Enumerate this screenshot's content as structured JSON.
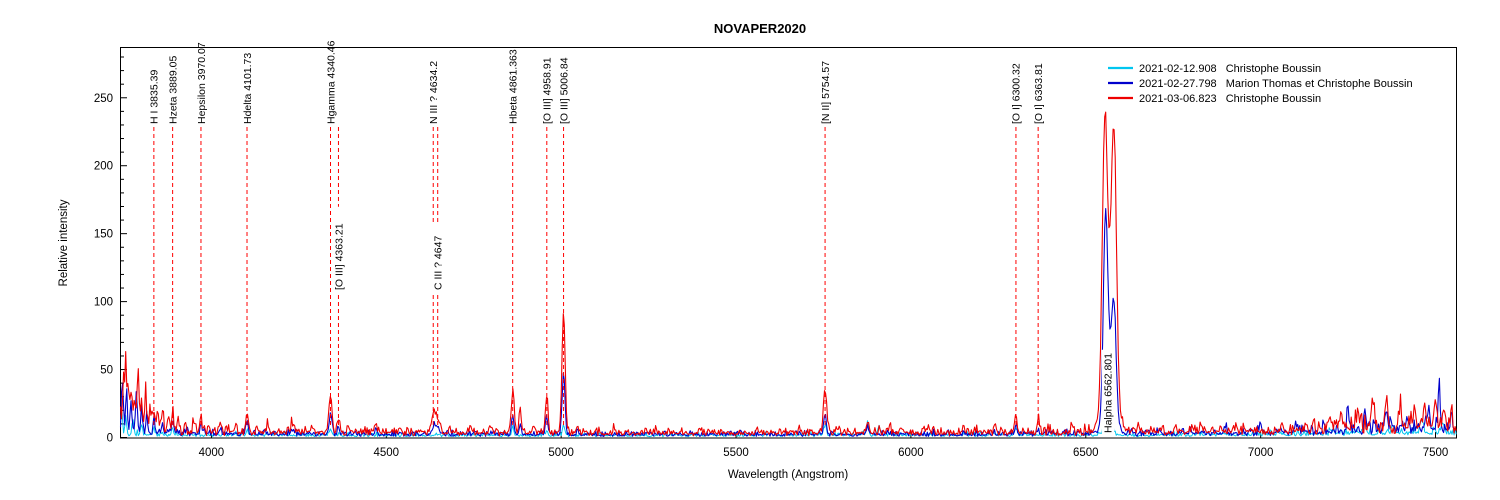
{
  "chart_data": {
    "type": "line",
    "title": "NOVAPER2020",
    "xlabel": "Wavelength (Angstrom)",
    "ylabel": "Relative intensity",
    "xlim": [
      3740,
      7560
    ],
    "ylim": [
      0,
      287
    ],
    "x_major_ticks": [
      4000,
      4500,
      5000,
      5500,
      6000,
      6500,
      7000,
      7500
    ],
    "y_major_ticks": [
      0,
      50,
      100,
      150,
      200,
      250
    ],
    "y_minor_step": 10,
    "grid": false,
    "legend_position": "top-right",
    "annotation_color": "#ff0000",
    "annotations": [
      {
        "label": "H I 3835.39",
        "wl": 3835.39,
        "tier": "top"
      },
      {
        "label": "Hzeta 3889.05",
        "wl": 3889.05,
        "tier": "top"
      },
      {
        "label": "Hepsilon 3970.07",
        "wl": 3970.07,
        "tier": "top"
      },
      {
        "label": "Hdelta 4101.73",
        "wl": 4101.73,
        "tier": "top"
      },
      {
        "label": "Hgamma 4340.46",
        "wl": 4340.46,
        "tier": "top"
      },
      {
        "label": "[O III] 4363.21",
        "wl": 4363.21,
        "tier": "mid"
      },
      {
        "label": "N III ? 4634.2",
        "wl": 4634.2,
        "tier": "top"
      },
      {
        "label": "C III ? 4647",
        "wl": 4647,
        "tier": "mid"
      },
      {
        "label": "Hbeta 4861.363",
        "wl": 4861.363,
        "tier": "top"
      },
      {
        "label": "[O III] 4958.91",
        "wl": 4958.91,
        "tier": "top"
      },
      {
        "label": "[O III] 5006.84",
        "wl": 5006.84,
        "tier": "top"
      },
      {
        "label": "[N II] 5754.57",
        "wl": 5754.57,
        "tier": "top"
      },
      {
        "label": "[O I] 6300.32",
        "wl": 6300.32,
        "tier": "top"
      },
      {
        "label": "[O I] 6363.81",
        "wl": 6363.81,
        "tier": "top"
      },
      {
        "label": "Halpha 6562.801",
        "wl": 6562.801,
        "tier": "peak"
      }
    ],
    "series": [
      {
        "date": "2021-02-12.908",
        "observer": "Christophe Boussin",
        "color": "#00c6f0",
        "stroke_width": 1.0,
        "seed": 11,
        "baseline": [
          [
            3740,
            2.5,
            3.5
          ],
          [
            3900,
            2,
            2.5
          ],
          [
            4500,
            1.8,
            2.2
          ],
          [
            5200,
            1.5,
            2
          ],
          [
            5800,
            2,
            2.5
          ],
          [
            6400,
            2,
            2.5
          ],
          [
            6700,
            1.8,
            2.2
          ],
          [
            7100,
            2.5,
            3.5
          ],
          [
            7300,
            3.5,
            4.5
          ],
          [
            7560,
            3.5,
            4.5
          ]
        ],
        "peaks": [
          [
            3743,
            20,
            2.5
          ],
          [
            3755,
            12,
            2.5
          ],
          [
            3775,
            10,
            2.5
          ],
          [
            3800,
            7,
            2.5
          ],
          [
            3835.4,
            5,
            2.5
          ],
          [
            3889,
            4,
            2.5
          ],
          [
            4101.7,
            4,
            2.5
          ],
          [
            4340.5,
            5,
            2.8
          ],
          [
            4861.4,
            5,
            2.8
          ],
          [
            4958.9,
            4,
            2.5
          ],
          [
            5006.8,
            8,
            3
          ],
          [
            5754.6,
            7,
            3.5
          ],
          [
            5876,
            8,
            3.5
          ],
          [
            5910,
            5,
            3
          ],
          [
            6300.3,
            5,
            3
          ],
          [
            6563,
            26,
            8
          ],
          [
            7050,
            3,
            2.5
          ],
          [
            7200,
            4,
            3
          ],
          [
            7300,
            4,
            3
          ],
          [
            7380,
            5,
            3
          ],
          [
            7460,
            9,
            5
          ],
          [
            7520,
            7,
            4
          ]
        ]
      },
      {
        "date": "2021-02-27.798",
        "observer": "Marion Thomas et Christophe Boussin",
        "color": "#0000cc",
        "stroke_width": 1.1,
        "seed": 23,
        "baseline": [
          [
            3740,
            5,
            8
          ],
          [
            3830,
            3.5,
            4.5
          ],
          [
            4000,
            3,
            3.5
          ],
          [
            4500,
            2.5,
            3
          ],
          [
            5100,
            2,
            2.5
          ],
          [
            5700,
            2.5,
            3
          ],
          [
            6200,
            2.5,
            3.5
          ],
          [
            6600,
            3,
            3.5
          ],
          [
            7000,
            3.5,
            4.5
          ],
          [
            7200,
            5,
            6.5
          ],
          [
            7400,
            7,
            8.5
          ],
          [
            7560,
            7,
            8.5
          ]
        ],
        "peaks": [
          [
            3745,
            40,
            2.5
          ],
          [
            3757,
            28,
            2.5
          ],
          [
            3770,
            22,
            2.5
          ],
          [
            3785,
            26,
            2.5
          ],
          [
            3800,
            15,
            2.5
          ],
          [
            3815,
            12,
            2.5
          ],
          [
            3835.4,
            10,
            2.8
          ],
          [
            3860,
            8,
            2.5
          ],
          [
            3889,
            9,
            2.8
          ],
          [
            3930,
            6,
            2.5
          ],
          [
            3970,
            7,
            2.8
          ],
          [
            4026,
            5,
            2.5
          ],
          [
            4101.7,
            10,
            3
          ],
          [
            4150,
            4,
            2.5
          ],
          [
            4230,
            4,
            2.5
          ],
          [
            4340.5,
            15,
            3.5
          ],
          [
            4363,
            5,
            2.5
          ],
          [
            4471,
            4,
            2.5
          ],
          [
            4640,
            7,
            8
          ],
          [
            4861.4,
            13,
            3.5
          ],
          [
            4883,
            8,
            3
          ],
          [
            4958.9,
            13,
            3.5
          ],
          [
            5006.8,
            46,
            4
          ],
          [
            5047,
            5,
            2.5
          ],
          [
            5754.6,
            15,
            3.5
          ],
          [
            5876,
            6,
            3
          ],
          [
            6300.3,
            7,
            3
          ],
          [
            6363.8,
            4,
            2.5
          ],
          [
            6556,
            130,
            6
          ],
          [
            6581,
            72,
            6
          ],
          [
            6567,
            45,
            10
          ],
          [
            6567,
            12,
            18
          ],
          [
            6680,
            4,
            2.5
          ],
          [
            6800,
            5,
            2.5
          ],
          [
            6900,
            4,
            2.5
          ],
          [
            7000,
            5,
            2.5
          ],
          [
            7100,
            6,
            3
          ],
          [
            7180,
            8,
            3
          ],
          [
            7250,
            14,
            3.5
          ],
          [
            7300,
            10,
            3
          ],
          [
            7360,
            13,
            3.5
          ],
          [
            7420,
            10,
            3
          ],
          [
            7480,
            17,
            3.5
          ],
          [
            7510,
            30,
            3
          ],
          [
            7545,
            12,
            3
          ]
        ]
      },
      {
        "date": "2021-03-06.823",
        "observer": "Christophe Boussin",
        "color": "#ee0000",
        "stroke_width": 1.1,
        "seed": 37,
        "baseline": [
          [
            3740,
            9,
            14
          ],
          [
            3820,
            7,
            9
          ],
          [
            3900,
            5,
            7
          ],
          [
            4000,
            4.5,
            5.5
          ],
          [
            4200,
            4,
            4.5
          ],
          [
            4600,
            4,
            4
          ],
          [
            5050,
            3.5,
            3.5
          ],
          [
            5600,
            3.5,
            3.5
          ],
          [
            5800,
            4,
            4.5
          ],
          [
            6200,
            4,
            4.5
          ],
          [
            6500,
            4.5,
            5
          ],
          [
            6620,
            4.5,
            5
          ],
          [
            7000,
            5,
            5.5
          ],
          [
            7150,
            6,
            8
          ],
          [
            7300,
            8,
            11
          ],
          [
            7480,
            8,
            11
          ],
          [
            7560,
            7,
            10
          ]
        ],
        "peaks": [
          [
            3748,
            30,
            2.5
          ],
          [
            3755,
            48,
            2.5
          ],
          [
            3763,
            25,
            2.5
          ],
          [
            3771,
            30,
            2.5
          ],
          [
            3780,
            20,
            2.5
          ],
          [
            3790,
            40,
            3
          ],
          [
            3800,
            22,
            2.5
          ],
          [
            3812,
            25,
            3
          ],
          [
            3825,
            15,
            2.5
          ],
          [
            3835.4,
            16,
            3
          ],
          [
            3848,
            12,
            2.5
          ],
          [
            3860,
            16,
            3
          ],
          [
            3875,
            10,
            2.5
          ],
          [
            3889,
            15,
            3
          ],
          [
            3905,
            10,
            2.5
          ],
          [
            3925,
            9,
            2.5
          ],
          [
            3950,
            7,
            2.5
          ],
          [
            3970,
            11,
            3
          ],
          [
            4026,
            7,
            2.5
          ],
          [
            4070,
            6,
            2.5
          ],
          [
            4101.7,
            15,
            3.5
          ],
          [
            4130,
            6,
            2.5
          ],
          [
            4160,
            7,
            2.5
          ],
          [
            4230,
            8,
            3
          ],
          [
            4290,
            5,
            2.5
          ],
          [
            4340.5,
            26,
            4.5
          ],
          [
            4363,
            10,
            3
          ],
          [
            4390,
            5,
            2.5
          ],
          [
            4471,
            6,
            3
          ],
          [
            4540,
            5,
            2.5
          ],
          [
            4640,
            14,
            9
          ],
          [
            4680,
            5,
            2.5
          ],
          [
            4740,
            4,
            2.5
          ],
          [
            4800,
            5,
            2.5
          ],
          [
            4861.4,
            29,
            4.5
          ],
          [
            4883,
            17,
            3.5
          ],
          [
            4922,
            6,
            3
          ],
          [
            4958.9,
            28,
            3.5
          ],
          [
            5006.8,
            90,
            4.5
          ],
          [
            5047,
            7,
            3
          ],
          [
            5150,
            4,
            2.5
          ],
          [
            5270,
            4,
            2.5
          ],
          [
            5400,
            3,
            2.5
          ],
          [
            5560,
            4,
            2.5
          ],
          [
            5680,
            5,
            2.5
          ],
          [
            5754.6,
            30,
            4.5
          ],
          [
            5790,
            5,
            2.5
          ],
          [
            5876,
            9,
            3.5
          ],
          [
            5940,
            5,
            2.5
          ],
          [
            6050,
            5,
            2.5
          ],
          [
            6150,
            6,
            2.5
          ],
          [
            6240,
            5,
            2.5
          ],
          [
            6300.3,
            15,
            3.2
          ],
          [
            6363.8,
            11,
            3
          ],
          [
            6460,
            6,
            2.5
          ],
          [
            6554,
            170,
            7
          ],
          [
            6581,
            166,
            7
          ],
          [
            6567,
            75,
            13
          ],
          [
            6567,
            20,
            22
          ],
          [
            6650,
            6,
            2.5
          ],
          [
            6720,
            5,
            2.5
          ],
          [
            6830,
            6,
            2.5
          ],
          [
            6930,
            5,
            2.5
          ],
          [
            7060,
            6,
            2.5
          ],
          [
            7150,
            9,
            3
          ],
          [
            7230,
            13,
            3.5
          ],
          [
            7280,
            12,
            3
          ],
          [
            7320,
            22,
            4
          ],
          [
            7360,
            17,
            3.5
          ],
          [
            7400,
            14,
            3.5
          ],
          [
            7440,
            16,
            3.5
          ],
          [
            7470,
            13,
            3
          ],
          [
            7500,
            22,
            3.5
          ],
          [
            7525,
            14,
            3
          ],
          [
            7545,
            16,
            3
          ]
        ]
      }
    ]
  }
}
